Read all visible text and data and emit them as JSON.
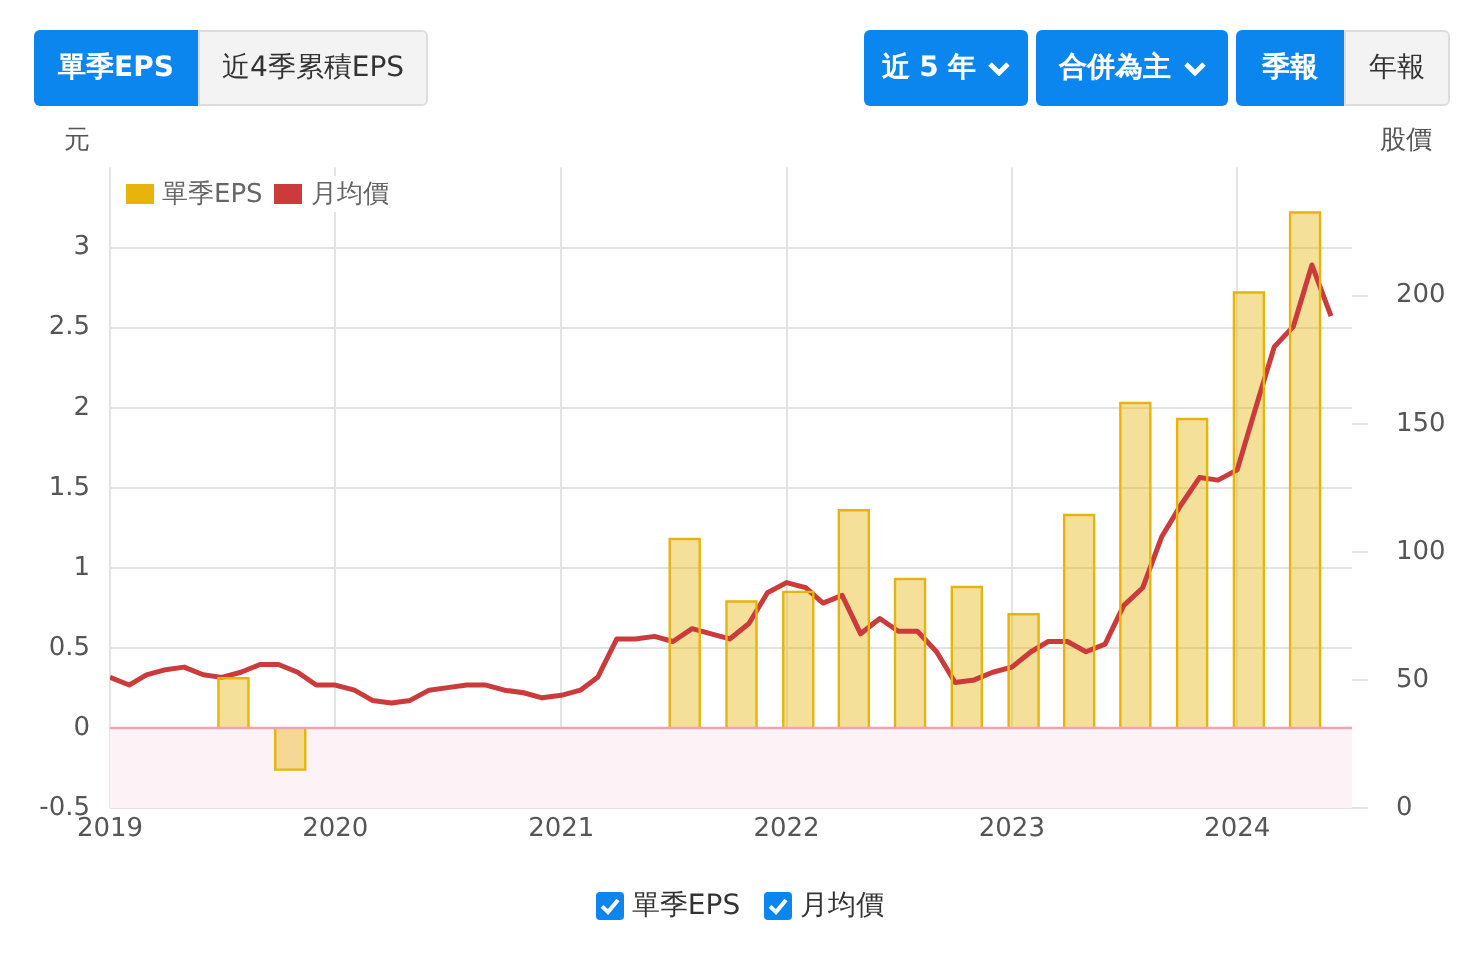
{
  "chart_data": {
    "type": "bar",
    "ylabel": "元",
    "y2label": "股價",
    "annotations": [
      "單季EPS",
      "近4季累積EPS",
      "近 5 年",
      "合併為主",
      "季報",
      "年報"
    ],
    "xlim": [
      "2019-01-01",
      "2024-07-05"
    ],
    "xticks": [
      "2019",
      "2020",
      "2021",
      "2022",
      "2023",
      "2024"
    ],
    "ylim": [
      -0.5,
      3.5
    ],
    "yticks": [
      -0.5,
      0,
      0.5,
      1,
      1.5,
      2,
      2.5,
      3
    ],
    "y2lim": [
      0,
      250
    ],
    "y2ticks": [
      0,
      50,
      100,
      150,
      200
    ],
    "grid": true,
    "legend": "top left",
    "marker": "none",
    "bands": [
      {
        "axis": "y",
        "from": -0.5,
        "to": 0,
        "color": "#fdf2f5"
      }
    ],
    "ref_lines": [
      {
        "axis": "y",
        "value": 0,
        "color": "#f2a3b3"
      }
    ],
    "series": [
      {
        "name": "單季EPS",
        "color": "#e8b40c",
        "x": [
          "2019-07-20",
          "2019-10-20",
          "2021-07-20",
          "2021-10-20",
          "2022-01-20",
          "2022-04-20",
          "2022-07-20",
          "2022-10-20",
          "2023-01-20",
          "2023-04-20",
          "2023-07-20",
          "2023-10-20",
          "2024-01-20",
          "2024-04-20"
        ],
        "values": [
          0.31,
          -0.26,
          1.18,
          0.79,
          0.85,
          1.36,
          0.93,
          0.88,
          0.71,
          1.33,
          2.03,
          1.93,
          2.72,
          3.22
        ]
      },
      {
        "name": "月均價",
        "type": "line",
        "axis": "y2",
        "color": "#cc3b3b",
        "x": [
          "2019-01",
          "2019-02",
          "2019-03",
          "2019-04",
          "2019-05",
          "2019-06",
          "2019-07",
          "2019-08",
          "2019-09",
          "2019-10",
          "2019-11",
          "2019-12",
          "2020-01",
          "2020-02",
          "2020-03",
          "2020-04",
          "2020-05",
          "2020-06",
          "2020-07",
          "2020-08",
          "2020-09",
          "2020-10",
          "2020-11",
          "2020-12",
          "2021-01",
          "2021-02",
          "2021-03",
          "2021-04",
          "2021-05",
          "2021-06",
          "2021-07",
          "2021-08",
          "2021-09",
          "2021-10",
          "2021-11",
          "2021-12",
          "2022-01",
          "2022-02",
          "2022-03",
          "2022-04",
          "2022-05",
          "2022-06",
          "2022-07",
          "2022-08",
          "2022-09",
          "2022-10",
          "2022-11",
          "2022-12",
          "2023-01",
          "2023-02",
          "2023-03",
          "2023-04",
          "2023-05",
          "2023-06",
          "2023-07",
          "2023-08",
          "2023-09",
          "2023-10",
          "2023-11",
          "2023-12",
          "2024-01",
          "2024-02",
          "2024-03",
          "2024-04",
          "2024-05",
          "2024-06"
        ],
        "values": [
          51,
          48,
          52,
          54,
          55,
          52,
          51,
          53,
          56,
          56,
          53,
          48,
          48,
          46,
          42,
          41,
          42,
          46,
          47,
          48,
          48,
          46,
          45,
          43,
          44,
          46,
          51,
          66,
          66,
          67,
          65,
          70,
          68,
          66,
          72,
          84,
          88,
          86,
          80,
          83,
          68,
          74,
          69,
          69,
          61,
          49,
          50,
          53,
          55,
          61,
          65,
          65,
          61,
          64,
          79,
          86,
          106,
          118,
          129,
          128,
          132,
          157,
          180,
          188,
          212,
          192
        ]
      }
    ]
  }
}
